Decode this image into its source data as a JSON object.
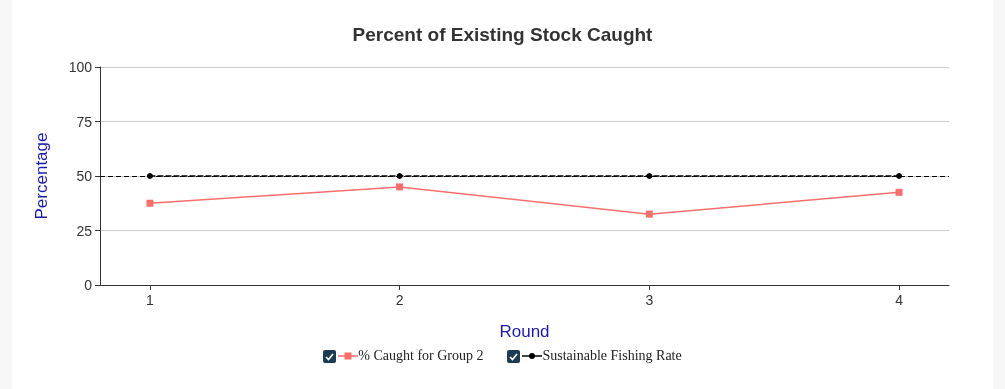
{
  "chart_data": {
    "type": "line",
    "title": "Percent of Existing Stock Caught",
    "xlabel": "Round",
    "ylabel": "Percentage",
    "x": [
      1,
      2,
      3,
      4
    ],
    "xlim": [
      0.8,
      4.2
    ],
    "xticks": [
      1,
      2,
      3,
      4
    ],
    "ylim": [
      0,
      100
    ],
    "yticks": [
      0,
      25,
      50,
      75,
      100
    ],
    "series": [
      {
        "name": "% Caught for Group 2",
        "color": "#f76f6b",
        "values": [
          37.5,
          45,
          32.5,
          42.5
        ],
        "marker": "square",
        "line_style": "solid"
      },
      {
        "name": "Sustainable Fishing Rate",
        "color": "#000000",
        "values": [
          50,
          50,
          50,
          50
        ],
        "marker": "circle",
        "line_style": "dashed"
      }
    ],
    "ref_lines": [
      {
        "axis": "y",
        "value": 50,
        "color": "#000000",
        "line_style": "dashed"
      }
    ],
    "grid": "y",
    "legend": "bottom"
  }
}
